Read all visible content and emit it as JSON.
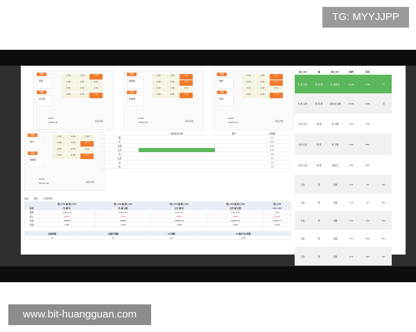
{
  "watermarks": {
    "tg": "TG: MYYJJPP",
    "url": "www.bit-huangguan.com"
  },
  "cards": [
    {
      "tag": "英超",
      "home": "曼联",
      "away": "切尔西",
      "odds": [
        [
          "1.49",
          "2.95",
          "7.63"
        ],
        [
          "2.08",
          "2.52",
          "3.27"
        ],
        [
          "3.02",
          "3.49",
          "2.11"
        ],
        [
          "1.50",
          "4.25",
          "4.15"
        ]
      ],
      "hot": [
        2,
        11
      ],
      "stake": "10000",
      "total": "109595.00",
      "btn": "投注方案"
    },
    {
      "tag": "英超",
      "home": "阿森纳",
      "away": "利物浦",
      "odds": [
        [
          "1.49",
          "2.95",
          "7.63"
        ],
        [
          "2.08",
          "2.52",
          "3.27"
        ],
        [
          "3.02",
          "3.49",
          "2.11"
        ],
        [
          "1.50",
          "4.25",
          "4.15"
        ]
      ],
      "hot": [
        2,
        5,
        11
      ],
      "stake": "14184",
      "total": "108552.80",
      "btn": "投注方案"
    },
    {
      "tag": "英超",
      "home": "热刺",
      "away": "曼城",
      "odds": [
        [
          "1.49",
          "2.95",
          "7.63"
        ],
        [
          "2.08",
          "2.52",
          "3.27"
        ],
        [
          "3.02",
          "3.49",
          "2.11"
        ],
        [
          "1.50",
          "4.25",
          "4.15"
        ]
      ],
      "hot": [
        2,
        5,
        11
      ],
      "stake": "40025",
      "total": "228600.83",
      "btn": "投注方案"
    },
    {
      "tag": "英超",
      "home": "纽卡",
      "away": "埃弗顿",
      "odds": [
        [
          "1.49",
          "2.95",
          "7.63"
        ],
        [
          "2.08",
          "2.52",
          "3.27"
        ],
        [
          "3.02",
          "3.49",
          "2.11"
        ],
        [
          "1.50",
          "4.25",
          "4.15"
        ]
      ],
      "hot": [
        5,
        11
      ],
      "stake": "85555",
      "total": "229440.89",
      "btn": "投注方案"
    }
  ],
  "mid": {
    "headers": [
      "",
      "组合投注方案",
      "盈亏",
      "总金额"
    ],
    "rows": [
      [
        "胜",
        "",
        "",
        "4.6"
      ],
      [
        "平",
        "",
        "",
        "2.17"
      ],
      [
        "让胜",
        "",
        "",
        "2.17"
      ],
      [
        "让平",
        "",
        "",
        "2.27"
      ],
      [
        "负",
        "",
        "",
        "1.8"
      ],
      [
        "让负",
        "",
        "",
        "2.5"
      ],
      [
        "总",
        "",
        "",
        "1.5"
      ],
      [
        "合",
        "",
        "",
        "1.5"
      ]
    ]
  },
  "bottom": {
    "filters": [
      "全选",
      "胜平",
      "让球方案"
    ],
    "headers": [
      "",
      "周二008 曼 周二009",
      "周二008 曼 周二009",
      "周二008 曼 周二009",
      "周二008 曼 周二009",
      "周二008"
    ],
    "sub": [
      "玩法",
      "负 曼 负",
      "负 曼 让胜",
      "让负 曼 负",
      "让负 曼 让胜",
      "HG -0.25"
    ],
    "rows": [
      [
        "赔率",
        "5.05 2.17",
        "5.05 1.52",
        "2.27 2.17",
        "2.27 1.52",
        "1.52"
      ],
      [
        "投入",
        "19000",
        "14184",
        "18333",
        "15845",
        "22000"
      ],
      [
        "中奖",
        "109595",
        "95686",
        "228600.51",
        "228600.51",
        "34000.71"
      ],
      [
        "利润",
        "1798",
        "1798",
        "1798",
        "1798",
        "1798"
      ]
    ],
    "summary_headers": [
      "总胜场数",
      "总胜平场数",
      "HG场数",
      "HG胜平(负)场数"
    ],
    "summary_values": [
      "14",
      "14",
      "2.2",
      "1.45"
    ]
  },
  "right": {
    "headers": [
      "周二008",
      "曼",
      "周二009",
      "赔率",
      "利润",
      ""
    ],
    "rows": [
      {
        "a": "负 负 让负",
        "b": "曼 曼 曼",
        "c": "负 让胜 负",
        "odds": "10.95",
        "profit": "1746",
        "x": "可",
        "style": "green"
      },
      {
        "a": "负 负 让负",
        "b": "曼 曼 曼",
        "c": "让胜 负 让胜",
        "odds": "10.84",
        "profit": "1232",
        "x": "可",
        "style": "alt"
      },
      {
        "a": "让负 让负",
        "b": "曼 曼",
        "c": "负 让胜",
        "odds": "4.83",
        "profit": "748",
        "x": "",
        "style": ""
      },
      {
        "a": "让负 让负",
        "b": "曼 曼",
        "c": "负 让胜",
        "odds": "4.83",
        "profit": "683",
        "x": "",
        "style": "alt"
      },
      {
        "a": "让负 让负",
        "b": "曼 曼",
        "c": "让胜 负",
        "odds": "4.83",
        "profit": "526",
        "x": "",
        "style": ""
      },
      {
        "a": "让负",
        "b": "曼",
        "c": "让胜",
        "odds": "3.47",
        "profit": "-87",
        "x": "HG",
        "style": "alt"
      },
      {
        "a": "让负",
        "b": "曼",
        "c": "让胜",
        "odds": "3.47",
        "profit": "-97",
        "x": "HG",
        "style": ""
      },
      {
        "a": "让负",
        "b": "曼",
        "c": "让胜",
        "odds": "3.47",
        "profit": "-192",
        "x": "HG",
        "style": "alt"
      },
      {
        "a": "让负",
        "b": "曼",
        "c": "让胜",
        "odds": "3.47",
        "profit": "-192",
        "x": "HG",
        "style": ""
      },
      {
        "a": "让负",
        "b": "曼",
        "c": "让胜",
        "odds": "3.72",
        "profit": "-221",
        "x": "HG",
        "style": "alt"
      }
    ]
  }
}
